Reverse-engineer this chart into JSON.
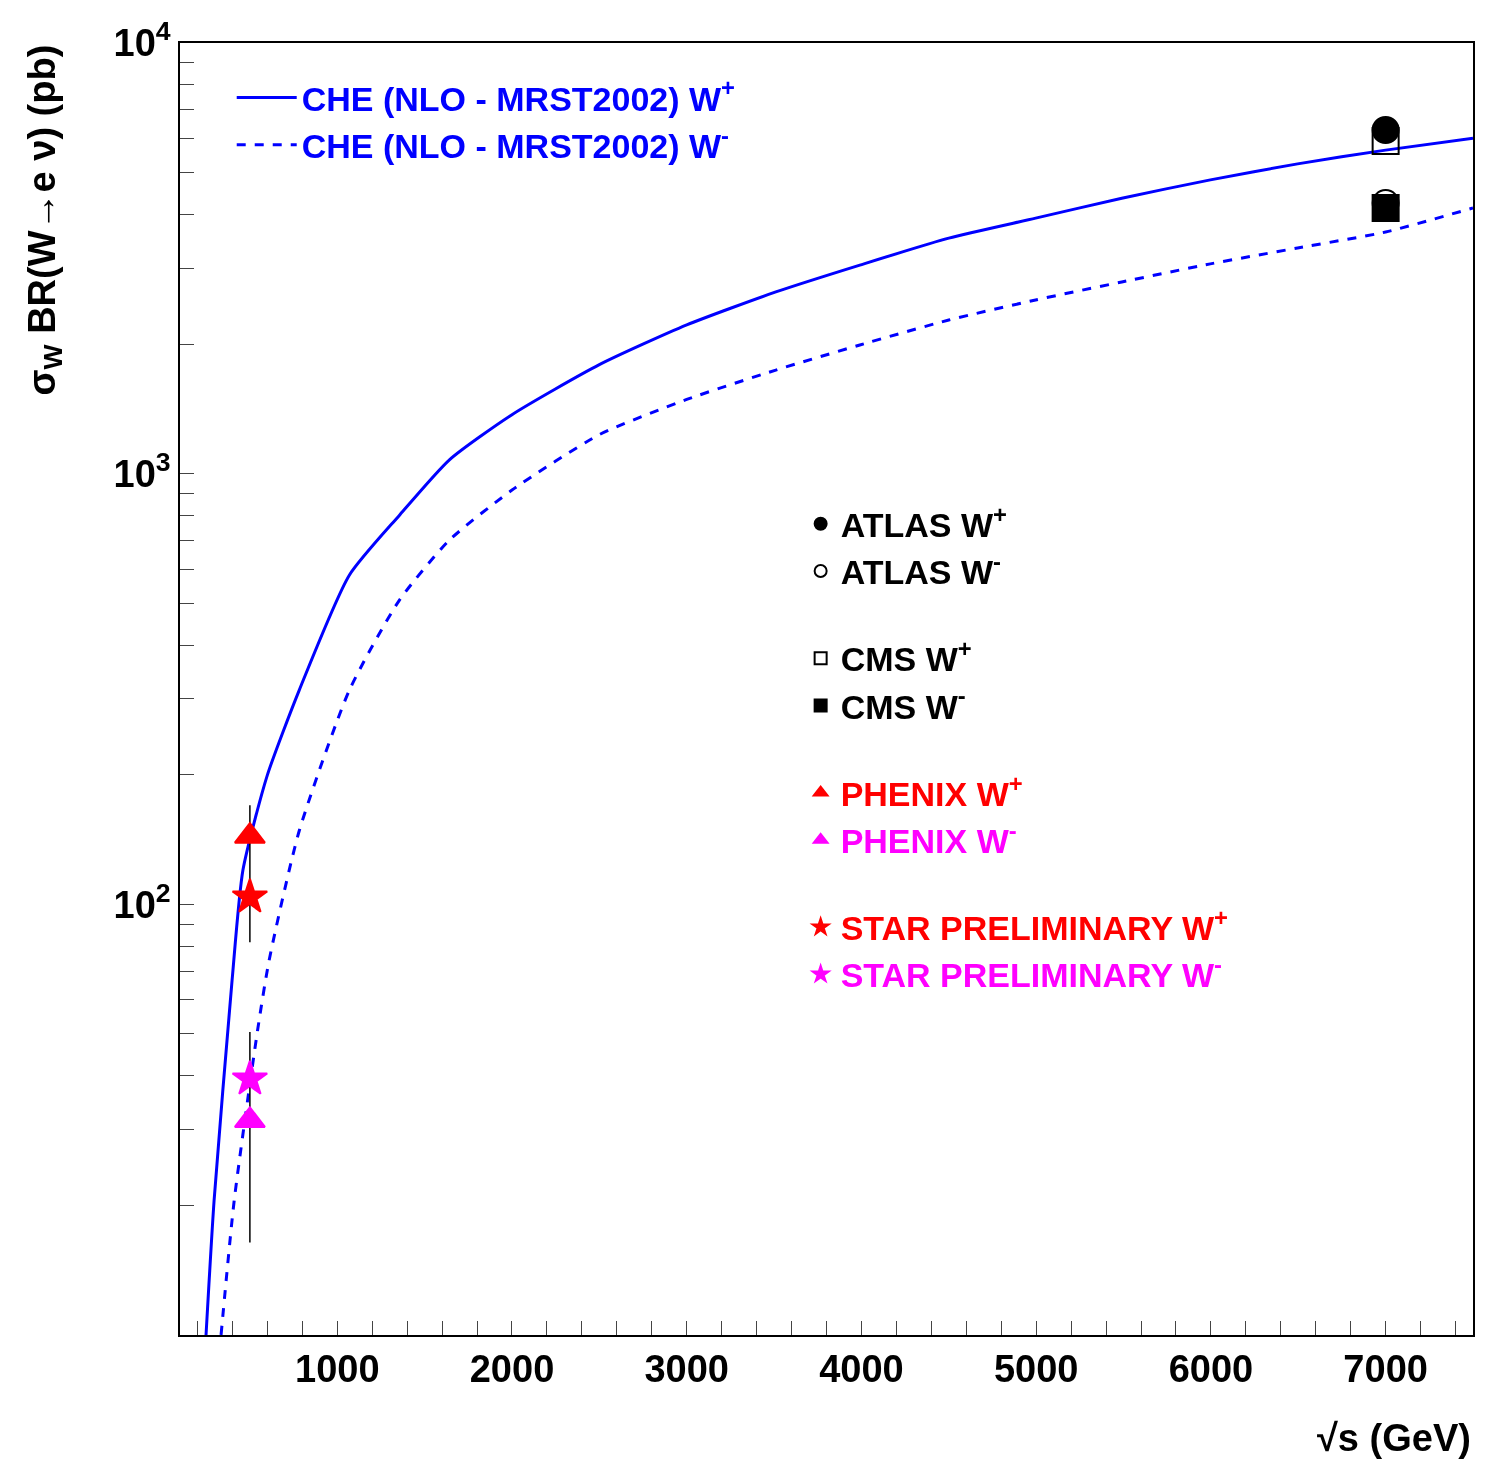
{
  "chart_data": {
    "type": "line",
    "xlabel": "√s (GeV)",
    "ylabel": "σ$_{W}$ BR(W→e ν) (pb)",
    "log": "y",
    "grid": false,
    "legend": "top left",
    "xlim": [
      100,
      7500
    ],
    "xticks": [
      {
        "value": 200,
        "label": null
      },
      {
        "value": 400,
        "label": null
      },
      {
        "value": 600,
        "label": null
      },
      {
        "value": 800,
        "label": null
      },
      1000,
      {
        "value": 1200,
        "label": null
      },
      {
        "value": 1400,
        "label": null
      },
      {
        "value": 1600,
        "label": null
      },
      {
        "value": 1800,
        "label": null
      },
      2000,
      {
        "value": 2200,
        "label": null
      },
      {
        "value": 2400,
        "label": null
      },
      {
        "value": 2600,
        "label": null
      },
      {
        "value": 2800,
        "label": null
      },
      3000,
      {
        "value": 3200,
        "label": null
      },
      {
        "value": 3400,
        "label": null
      },
      {
        "value": 3600,
        "label": null
      },
      {
        "value": 3800,
        "label": null
      },
      4000,
      {
        "value": 4200,
        "label": null
      },
      {
        "value": 4400,
        "label": null
      },
      {
        "value": 4600,
        "label": null
      },
      {
        "value": 4800,
        "label": null
      },
      5000,
      {
        "value": 5200,
        "label": null
      },
      {
        "value": 5400,
        "label": null
      },
      {
        "value": 5600,
        "label": null
      },
      {
        "value": 5800,
        "label": null
      },
      6000,
      {
        "value": 6200,
        "label": null
      },
      {
        "value": 6400,
        "label": null
      },
      {
        "value": 6600,
        "label": null
      },
      {
        "value": 6800,
        "label": null
      },
      7000,
      {
        "value": 7200,
        "label": null
      },
      {
        "value": 7400,
        "label": null
      }
    ],
    "ylim": [
      10,
      10000
    ],
    "yticks": [
      {
        "value": 20,
        "label": null
      },
      {
        "value": 30,
        "label": null
      },
      {
        "value": 40,
        "label": null
      },
      {
        "value": 50,
        "label": null
      },
      {
        "value": 60,
        "label": null
      },
      {
        "value": 70,
        "label": null
      },
      {
        "value": 80,
        "label": null
      },
      {
        "value": 90,
        "label": null
      },
      {
        "value": 100,
        "label": "10$^{2}$"
      },
      {
        "value": 200,
        "label": null
      },
      {
        "value": 300,
        "label": null
      },
      {
        "value": 400,
        "label": null
      },
      {
        "value": 500,
        "label": null
      },
      {
        "value": 600,
        "label": null
      },
      {
        "value": 700,
        "label": null
      },
      {
        "value": 800,
        "label": null
      },
      {
        "value": 900,
        "label": null
      },
      {
        "value": 1000,
        "label": "10$^{3}$"
      },
      {
        "value": 2000,
        "label": null
      },
      {
        "value": 3000,
        "label": null
      },
      {
        "value": 4000,
        "label": null
      },
      {
        "value": 5000,
        "label": null
      },
      {
        "value": 6000,
        "label": null
      },
      {
        "value": 7000,
        "label": null
      },
      {
        "value": 8000,
        "label": null
      },
      {
        "value": 9000,
        "label": null
      },
      {
        "value": 10000,
        "label": "10$^{4}$"
      }
    ],
    "series": [
      {
        "name": "CHE (NLO - MRST2002) W$^{+}$",
        "line_style": "solid",
        "color": "#0000ff",
        "x": [
          249,
          295,
          398,
          460,
          599,
          782,
          1069,
          1355,
          1642,
          2000,
          2500,
          3000,
          3510,
          3991,
          4500,
          4997,
          5490,
          5997,
          6496,
          7000,
          7500
        ],
        "values": [
          10,
          20.5,
          66.6,
          120,
          199,
          314,
          581,
          800,
          1077,
          1371,
          1791,
          2215,
          2642,
          3050,
          3523,
          3920,
          4362,
          4810,
          5240,
          5640,
          6010
        ]
      },
      {
        "name": "CHE (NLO - MRST2002) W$^{-}$",
        "line_style": "dashed",
        "color": "#0000ff",
        "x": [
          335,
          410,
          544,
          610,
          782,
          1069,
          1355,
          1642,
          2000,
          2500,
          3000,
          3510,
          3991,
          4500,
          4997,
          5490,
          5997,
          6496,
          7000,
          7500
        ],
        "values": [
          10,
          20.5,
          51,
          74.1,
          148,
          314,
          508,
          701,
          916,
          1232,
          1487,
          1740,
          1990,
          2274,
          2531,
          2787,
          3070,
          3343,
          3640,
          4140
        ]
      },
      {
        "name": "ATLAS W$^{+}$",
        "type": "scatter",
        "marker": "circle",
        "color": "#000000",
        "x": [
          7000
        ],
        "values": [
          6280
        ]
      },
      {
        "name": "ATLAS W$^{-}$",
        "type": "scatter",
        "marker": "circle-open",
        "color": "#000000",
        "x": [
          7000
        ],
        "values": [
          4250
        ]
      },
      {
        "name": "CMS W$^{+}$",
        "type": "scatter",
        "marker": "square-open",
        "color": "#000000",
        "x": [
          7000
        ],
        "values": [
          5920
        ]
      },
      {
        "name": "CMS W$^{-}$",
        "type": "scatter",
        "marker": "square",
        "color": "#000000",
        "x": [
          7000
        ],
        "values": [
          4140
        ]
      },
      {
        "name": "PHENIX W$^{+}$",
        "type": "scatter",
        "marker": "triangle",
        "color": "#ff0000",
        "x": [
          500
        ],
        "values": [
          144
        ],
        "errors": [
          [
            81.6,
            169.8
          ]
        ]
      },
      {
        "name": "PHENIX W$^{-}$",
        "type": "scatter",
        "marker": "triangle",
        "color": "#ff00ff",
        "x": [
          500
        ],
        "values": [
          31.5
        ],
        "errors": [
          [
            16.4,
            50.5
          ]
        ]
      },
      {
        "name": "STAR PRELIMINARY W$^{+}$",
        "type": "scatter",
        "marker": "star",
        "color": "#ff0000",
        "x": [
          500
        ],
        "values": [
          104
        ]
      },
      {
        "name": "STAR PRELIMINARY W$^{-}$",
        "type": "scatter",
        "marker": "star",
        "color": "#ff00ff",
        "x": [
          500
        ],
        "values": [
          39.3
        ]
      }
    ]
  }
}
